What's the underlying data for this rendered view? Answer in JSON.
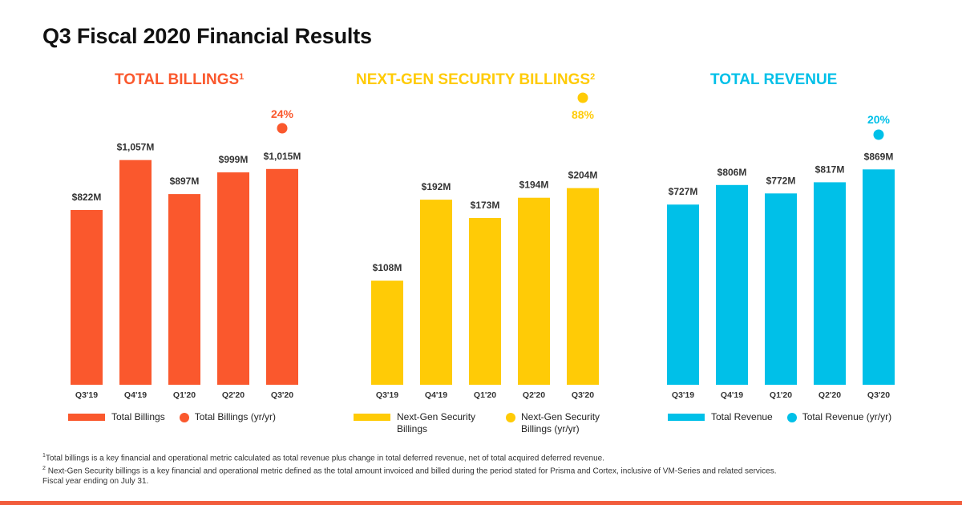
{
  "page_title": "Q3 Fiscal 2020 Financial Results",
  "charts": [
    {
      "title": "TOTAL BILLINGS",
      "title_sup": "1",
      "color": "#fa582d",
      "growth": "24%",
      "legend": {
        "bar_label": "Total Billings",
        "dot_label": "Total Billings (yr/yr)"
      }
    },
    {
      "title": "NEXT-GEN SECURITY BILLINGS",
      "title_sup": "2",
      "color": "#ffcb06",
      "growth": "88%",
      "legend": {
        "bar_label": "Next-Gen Security Billings",
        "dot_label": "Next-Gen Security Billings (yr/yr)"
      }
    },
    {
      "title": "TOTAL REVENUE",
      "title_sup": "",
      "color": "#00c0e8",
      "growth": "20%",
      "legend": {
        "bar_label": "Total Revenue",
        "dot_label": "Total Revenue (yr/yr)"
      }
    }
  ],
  "chart_data": [
    {
      "type": "bar",
      "title": "TOTAL BILLINGS",
      "categories": [
        "Q3'19",
        "Q4'19",
        "Q1'20",
        "Q2'20",
        "Q3'20"
      ],
      "values": [
        822,
        1057,
        897,
        999,
        1015
      ],
      "data_labels": [
        "$822M",
        "$1,057M",
        "$897M",
        "$999M",
        "$1,015M"
      ],
      "ylim": [
        0,
        1150
      ],
      "series": [
        {
          "name": "Total Billings",
          "values": [
            822,
            1057,
            897,
            999,
            1015
          ]
        }
      ],
      "annotations": [
        {
          "category": "Q3'20",
          "series": "Total Billings (yr/yr)",
          "value": 24,
          "text": "24%"
        }
      ],
      "legend": "bottom"
    },
    {
      "type": "bar",
      "title": "NEXT-GEN SECURITY BILLINGS",
      "categories": [
        "Q3'19",
        "Q4'19",
        "Q1'20",
        "Q2'20",
        "Q3'20"
      ],
      "values": [
        108,
        192,
        173,
        194,
        204
      ],
      "data_labels": [
        "$108M",
        "$192M",
        "$173M",
        "$194M",
        "$204M"
      ],
      "ylim": [
        0,
        232
      ],
      "series": [
        {
          "name": "Next-Gen Security Billings",
          "values": [
            108,
            192,
            173,
            194,
            204
          ]
        }
      ],
      "annotations": [
        {
          "category": "Q3'20",
          "series": "Next-Gen Security Billings (yr/yr)",
          "value": 88,
          "text": "88%"
        }
      ],
      "legend": "bottom"
    },
    {
      "type": "bar",
      "title": "TOTAL REVENUE",
      "categories": [
        "Q3'19",
        "Q4'19",
        "Q1'20",
        "Q2'20",
        "Q3'20"
      ],
      "values": [
        727,
        806,
        772,
        817,
        869
      ],
      "data_labels": [
        "$727M",
        "$806M",
        "$772M",
        "$817M",
        "$869M"
      ],
      "ylim": [
        0,
        980
      ],
      "series": [
        {
          "name": "Total Revenue",
          "values": [
            727,
            806,
            772,
            817,
            869
          ]
        }
      ],
      "annotations": [
        {
          "category": "Q3'20",
          "series": "Total Revenue (yr/yr)",
          "value": 20,
          "text": "20%"
        }
      ],
      "legend": "bottom"
    }
  ],
  "footnotes": {
    "note1_marker": "1",
    "note1": "Total billings is a key financial and operational metric calculated as total revenue plus change in total deferred revenue, net of total acquired deferred revenue.",
    "note2_marker": "2",
    "note2": "Next-Gen Security billings is a key financial and operational metric defined as the total amount invoiced and billed during the period stated for Prisma and Cortex, inclusive of VM-Series and related services.",
    "note3": "Fiscal year ending on July 31."
  }
}
